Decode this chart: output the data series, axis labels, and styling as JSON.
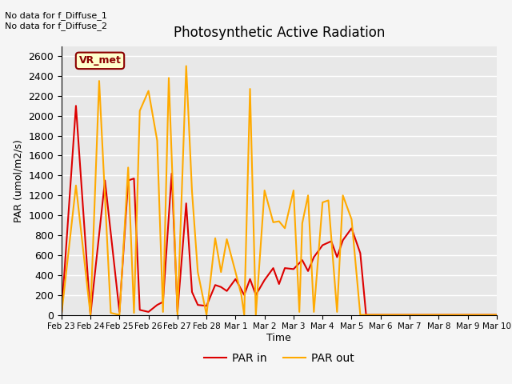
{
  "title": "Photosynthetic Active Radiation",
  "xlabel": "Time",
  "ylabel": "PAR (umol/m2/s)",
  "ylim": [
    0,
    2700
  ],
  "annotation_text": "No data for f_Diffuse_1\nNo data for f_Diffuse_2",
  "box_label": "VR_met",
  "xtick_labels": [
    "Feb 23",
    "Feb 24",
    "Feb 25",
    "Feb 26",
    "Feb 27",
    "Feb 28",
    "Mar 1",
    "Mar 2",
    "Mar 3",
    "Mar 4",
    "Mar 5",
    "Mar 6",
    "Mar 7",
    "Mar 8",
    "Mar 9",
    "Mar 10"
  ],
  "par_in_color": "#dd0000",
  "par_out_color": "#ffaa00",
  "background_color": "#e8e8e8",
  "grid_color": "#ffffff",
  "legend_par_in": "PAR in",
  "legend_par_out": "PAR out",
  "par_in_x": [
    0,
    0.5,
    1.0,
    1.5,
    2.0,
    2.3,
    2.5,
    2.7,
    3.0,
    3.3,
    3.5,
    3.8,
    4.0,
    4.3,
    4.5,
    4.7,
    5.0,
    5.3,
    5.5,
    5.7,
    6.0,
    6.3,
    6.5,
    6.7,
    7.0,
    7.3,
    7.5,
    7.7,
    8.0,
    8.3,
    8.5,
    8.7,
    9.0,
    9.3,
    9.5,
    9.7,
    10.0,
    10.3,
    10.5,
    15.0
  ],
  "par_in_y": [
    0,
    2100,
    0,
    1350,
    30,
    1350,
    1370,
    50,
    30,
    100,
    130,
    1420,
    30,
    1120,
    230,
    100,
    90,
    300,
    280,
    240,
    360,
    200,
    360,
    200,
    350,
    470,
    310,
    470,
    460,
    550,
    440,
    580,
    700,
    740,
    580,
    750,
    870,
    620,
    0,
    0
  ],
  "par_out_x": [
    0,
    0.5,
    1.0,
    1.3,
    1.7,
    2.0,
    2.3,
    2.5,
    2.7,
    3.0,
    3.3,
    3.5,
    3.7,
    4.0,
    4.3,
    4.5,
    4.7,
    5.0,
    5.3,
    5.5,
    5.7,
    6.0,
    6.2,
    6.3,
    6.5,
    6.7,
    7.0,
    7.3,
    7.5,
    7.7,
    8.0,
    8.2,
    8.3,
    8.5,
    8.7,
    9.0,
    9.2,
    9.5,
    9.7,
    10.0,
    10.3,
    15.0
  ],
  "par_out_y": [
    0,
    1300,
    0,
    2350,
    20,
    0,
    1480,
    20,
    2050,
    2250,
    1750,
    30,
    2380,
    0,
    2500,
    1240,
    430,
    0,
    770,
    430,
    760,
    430,
    200,
    0,
    2270,
    0,
    1250,
    930,
    940,
    870,
    1250,
    30,
    920,
    1200,
    30,
    1130,
    1150,
    30,
    1200,
    960,
    0,
    0
  ]
}
